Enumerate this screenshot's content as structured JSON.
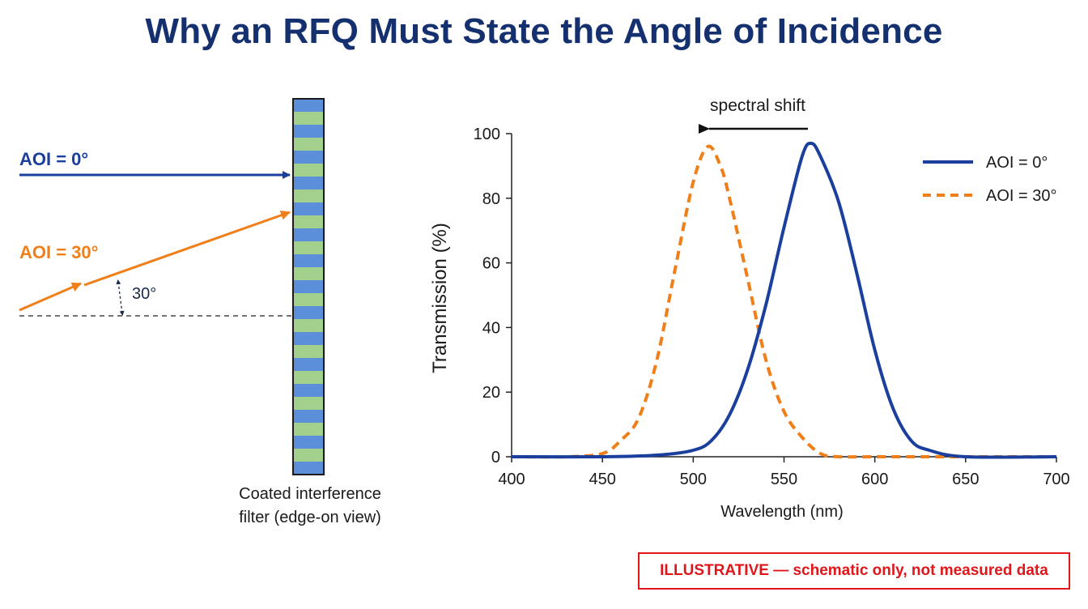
{
  "title": "Why an RFQ Must State the Angle of Incidence",
  "colors": {
    "aoi_0": "#1b3f9c",
    "aoi_30": "#f07f1a",
    "title": "#14306e",
    "filter_blue": "#5b8fd9",
    "filter_green": "#a4d08d",
    "disclaimer": "#e0161b"
  },
  "diagram": {
    "beam_0_label": "AOI = 0°",
    "beam_30_label": "AOI = 30°",
    "angle_label": "30°",
    "filter_caption_line1": "Coated interference",
    "filter_caption_line2": "filter (edge-on view)"
  },
  "chart_data": {
    "type": "line",
    "xlabel": "Wavelength (nm)",
    "ylabel": "Transmission (%)",
    "xlim": [
      400,
      700
    ],
    "ylim": [
      0,
      100
    ],
    "xticks": [
      400,
      450,
      500,
      550,
      600,
      650,
      700
    ],
    "yticks": [
      0,
      20,
      40,
      60,
      80,
      100
    ],
    "grid": false,
    "legend_position": "top-right",
    "annotation": "spectral shift",
    "series": [
      {
        "name": "AOI = 0°",
        "style": "solid",
        "x": [
          400,
          450,
          480,
          500,
          510,
          520,
          530,
          540,
          550,
          560,
          565,
          570,
          580,
          590,
          600,
          610,
          620,
          630,
          650,
          700
        ],
        "y": [
          0,
          0,
          0.5,
          2,
          5,
          13,
          27,
          47,
          71,
          93,
          97,
          93,
          79,
          57,
          33,
          15,
          5,
          2,
          0,
          0
        ]
      },
      {
        "name": "AOI = 30°",
        "style": "dashed",
        "x": [
          400,
          430,
          450,
          460,
          470,
          480,
          490,
          500,
          508,
          515,
          520,
          530,
          540,
          550,
          560,
          570,
          580,
          600,
          650,
          700
        ],
        "y": [
          0,
          0,
          1,
          5,
          12,
          30,
          58,
          85,
          96,
          90,
          80,
          55,
          30,
          14,
          6,
          1,
          0,
          0,
          0,
          0
        ]
      }
    ]
  },
  "disclaimer": "ILLUSTRATIVE — schematic only, not measured data"
}
